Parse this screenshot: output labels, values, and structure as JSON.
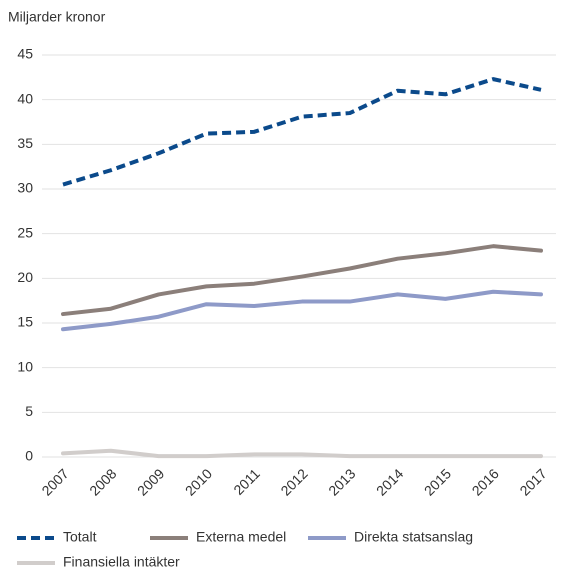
{
  "chart_data": {
    "type": "line",
    "y_axis_label": "Miljarder kronor",
    "categories": [
      "2007",
      "2008",
      "2009",
      "2010",
      "2011",
      "2012",
      "2013",
      "2014",
      "2015",
      "2016",
      "2017"
    ],
    "series": [
      {
        "name": "Totalt",
        "color": "#0b4a8b",
        "dashed": true,
        "values": [
          30.5,
          32.1,
          34.0,
          36.2,
          36.4,
          38.1,
          38.5,
          41.0,
          40.6,
          42.3,
          41.1
        ]
      },
      {
        "name": "Externa medel",
        "color": "#8b7f7a",
        "dashed": false,
        "values": [
          16.0,
          16.6,
          18.2,
          19.1,
          19.4,
          20.2,
          21.1,
          22.2,
          22.8,
          23.6,
          23.1
        ]
      },
      {
        "name": "Direkta statsanslag",
        "color": "#8e9ac8",
        "dashed": false,
        "values": [
          14.3,
          14.9,
          15.7,
          17.1,
          16.9,
          17.4,
          17.4,
          18.2,
          17.7,
          18.5,
          18.2
        ]
      },
      {
        "name": "Finansiella intäkter",
        "color": "#d1cdcb",
        "dashed": false,
        "values": [
          0.4,
          0.7,
          0.1,
          0.1,
          0.3,
          0.3,
          0.1,
          0.1,
          0.1,
          0.1,
          0.1
        ]
      }
    ],
    "ylim": [
      0,
      45
    ],
    "yticks": [
      0,
      5,
      10,
      15,
      20,
      25,
      30,
      35,
      40,
      45
    ],
    "grid": true,
    "legend": "bottom"
  }
}
